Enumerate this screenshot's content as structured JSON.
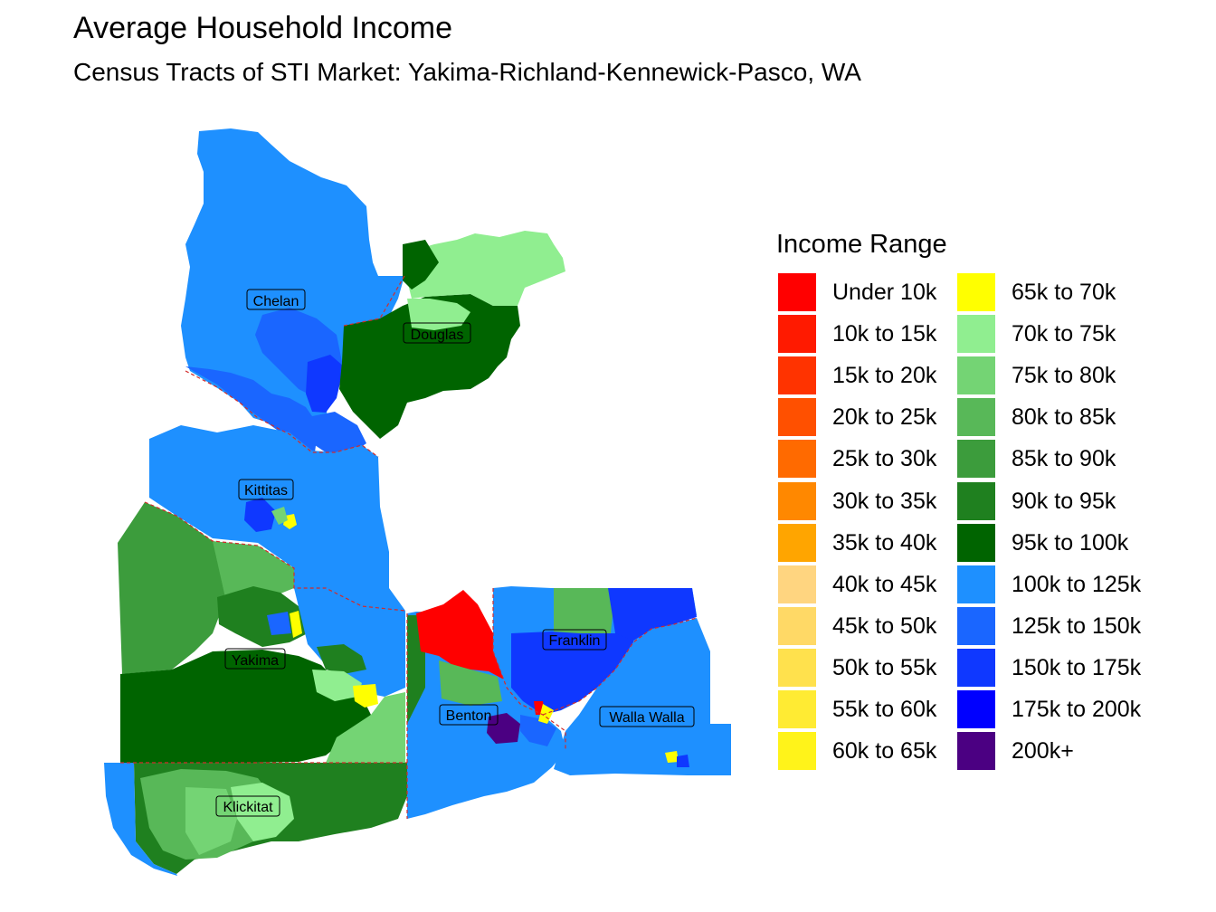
{
  "title": "Average Household Income",
  "subtitle": "Census Tracts of STI Market: Yakima-Richland-Kennewick-Pasco, WA",
  "legend": {
    "title": "Income Range",
    "items": [
      {
        "label": "Under 10k",
        "color": "#FF0000"
      },
      {
        "label": "10k to 15k",
        "color": "#FF1A00"
      },
      {
        "label": "15k to 20k",
        "color": "#FF3300"
      },
      {
        "label": "20k to 25k",
        "color": "#FF5000"
      },
      {
        "label": "25k to 30k",
        "color": "#FF6A00"
      },
      {
        "label": "30k to 35k",
        "color": "#FF8800"
      },
      {
        "label": "35k to 40k",
        "color": "#FFA500"
      },
      {
        "label": "40k to 45k",
        "color": "#FFD580"
      },
      {
        "label": "45k to 50k",
        "color": "#FFD966"
      },
      {
        "label": "50k to 55k",
        "color": "#FFE14D"
      },
      {
        "label": "55k to 60k",
        "color": "#FFEB33"
      },
      {
        "label": "60k to 65k",
        "color": "#FFF31A"
      },
      {
        "label": "65k to 70k",
        "color": "#FFFF00"
      },
      {
        "label": "70k to 75k",
        "color": "#90EE90"
      },
      {
        "label": "75k to 80k",
        "color": "#74D474"
      },
      {
        "label": "80k to 85k",
        "color": "#58B858"
      },
      {
        "label": "85k to 90k",
        "color": "#3C9C3C"
      },
      {
        "label": "90k to 95k",
        "color": "#1F801F"
      },
      {
        "label": "95k to 100k",
        "color": "#006400"
      },
      {
        "label": "100k to 125k",
        "color": "#1E90FF"
      },
      {
        "label": "125k to 150k",
        "color": "#1A66FF"
      },
      {
        "label": "150k to 175k",
        "color": "#0F38FF"
      },
      {
        "label": "175k to 200k",
        "color": "#0000FF"
      },
      {
        "label": "200k+",
        "color": "#4B0082"
      }
    ]
  },
  "counties": [
    {
      "name": "Chelan"
    },
    {
      "name": "Douglas"
    },
    {
      "name": "Kittitas"
    },
    {
      "name": "Yakima"
    },
    {
      "name": "Franklin"
    },
    {
      "name": "Benton"
    },
    {
      "name": "Walla Walla"
    },
    {
      "name": "Klickitat"
    }
  ]
}
